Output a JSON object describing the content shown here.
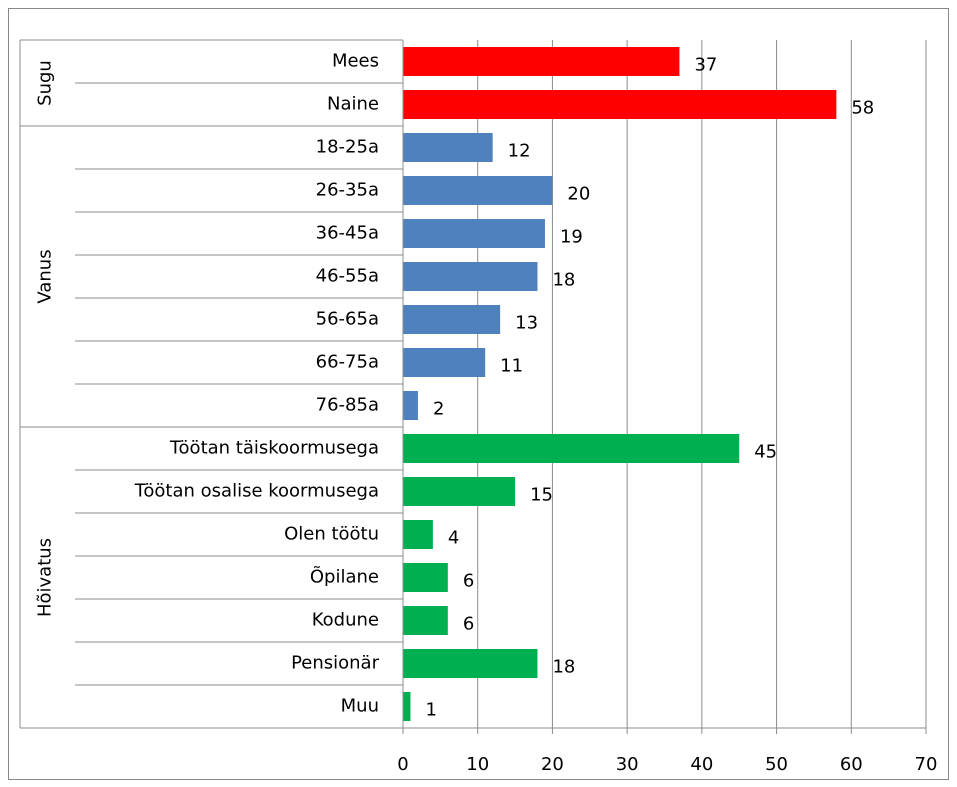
{
  "chart_data": {
    "type": "bar",
    "orientation": "horizontal",
    "groups": [
      {
        "name": "Sugu",
        "color": "#ff0000",
        "categories": [
          "Mees",
          "Naine"
        ],
        "values": [
          37,
          58
        ]
      },
      {
        "name": "Vanus",
        "color": "#4f81bd",
        "categories": [
          "18-25a",
          "26-35a",
          "36-45a",
          "46-55a",
          "56-65a",
          "66-75a",
          "76-85a"
        ],
        "values": [
          12,
          20,
          19,
          18,
          13,
          11,
          2
        ]
      },
      {
        "name": "Hõivatus",
        "color": "#00b050",
        "categories": [
          "Töötan täiskoormusega",
          "Töötan osalise koormusega",
          "Olen töötu",
          "Õpilane",
          "Kodune",
          "Pensionär",
          "Muu"
        ],
        "values": [
          45,
          15,
          4,
          6,
          6,
          18,
          1
        ]
      }
    ],
    "xlim": [
      0,
      70
    ],
    "xticks": [
      0,
      10,
      20,
      30,
      40,
      50,
      60,
      70
    ],
    "grid": true
  }
}
